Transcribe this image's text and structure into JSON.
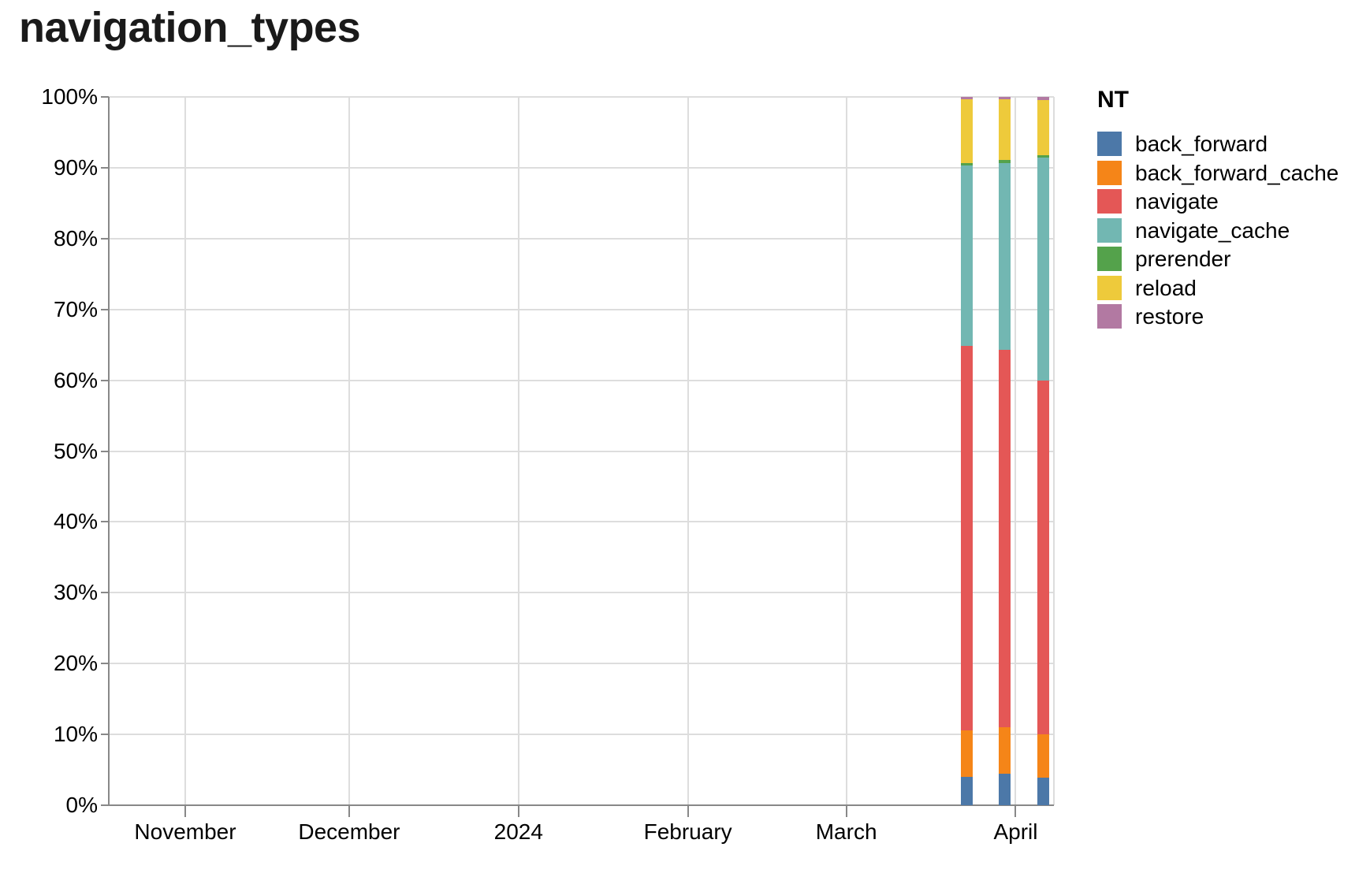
{
  "title": "navigation_types",
  "legend": {
    "title": "NT",
    "items": [
      {
        "label": "back_forward",
        "color": "#4c78a8"
      },
      {
        "label": "back_forward_cache",
        "color": "#f58518"
      },
      {
        "label": "navigate",
        "color": "#e45756"
      },
      {
        "label": "navigate_cache",
        "color": "#72b7b2"
      },
      {
        "label": "prerender",
        "color": "#54a24b"
      },
      {
        "label": "reload",
        "color": "#eeca3b"
      },
      {
        "label": "restore",
        "color": "#b279a2"
      }
    ]
  },
  "axes": {
    "y": {
      "tick_labels": [
        "0%",
        "10%",
        "20%",
        "30%",
        "40%",
        "50%",
        "60%",
        "70%",
        "80%",
        "90%",
        "100%"
      ],
      "min": 0,
      "max": 100
    },
    "x": {
      "ticks": [
        {
          "label": "November",
          "date": "2023-11-01"
        },
        {
          "label": "December",
          "date": "2023-12-01"
        },
        {
          "label": "2024",
          "date": "2024-01-01"
        },
        {
          "label": "February",
          "date": "2024-02-01"
        },
        {
          "label": "March",
          "date": "2024-03-01"
        },
        {
          "label": "April",
          "date": "2024-04-01"
        }
      ]
    }
  },
  "chart_data": {
    "type": "bar",
    "stacked": true,
    "normalized": true,
    "title": "navigation_types",
    "xlabel": "",
    "ylabel": "",
    "ylim": [
      0,
      100
    ],
    "grid": true,
    "legend_position": "right",
    "legend_title": "NT",
    "x_domain": [
      "2023-10-18",
      "2024-04-08"
    ],
    "categories": [
      "2024-03-23",
      "2024-03-30",
      "2024-04-06"
    ],
    "series": [
      {
        "name": "back_forward",
        "color": "#4c78a8",
        "values": [
          4.0,
          4.4,
          3.9
        ]
      },
      {
        "name": "back_forward_cache",
        "color": "#f58518",
        "values": [
          6.6,
          6.6,
          6.1
        ]
      },
      {
        "name": "navigate",
        "color": "#e45756",
        "values": [
          54.3,
          53.3,
          49.9
        ]
      },
      {
        "name": "navigate_cache",
        "color": "#72b7b2",
        "values": [
          25.4,
          26.4,
          31.5
        ]
      },
      {
        "name": "prerender",
        "color": "#54a24b",
        "values": [
          0.35,
          0.35,
          0.4
        ]
      },
      {
        "name": "reload",
        "color": "#eeca3b",
        "values": [
          9.0,
          8.6,
          7.8
        ]
      },
      {
        "name": "restore",
        "color": "#b279a2",
        "values": [
          0.35,
          0.35,
          0.4
        ]
      }
    ]
  },
  "colors": {
    "grid": "#dddddd",
    "axis": "#888888",
    "label": "#000000",
    "title": "#1a1a1a",
    "background": "#ffffff"
  }
}
